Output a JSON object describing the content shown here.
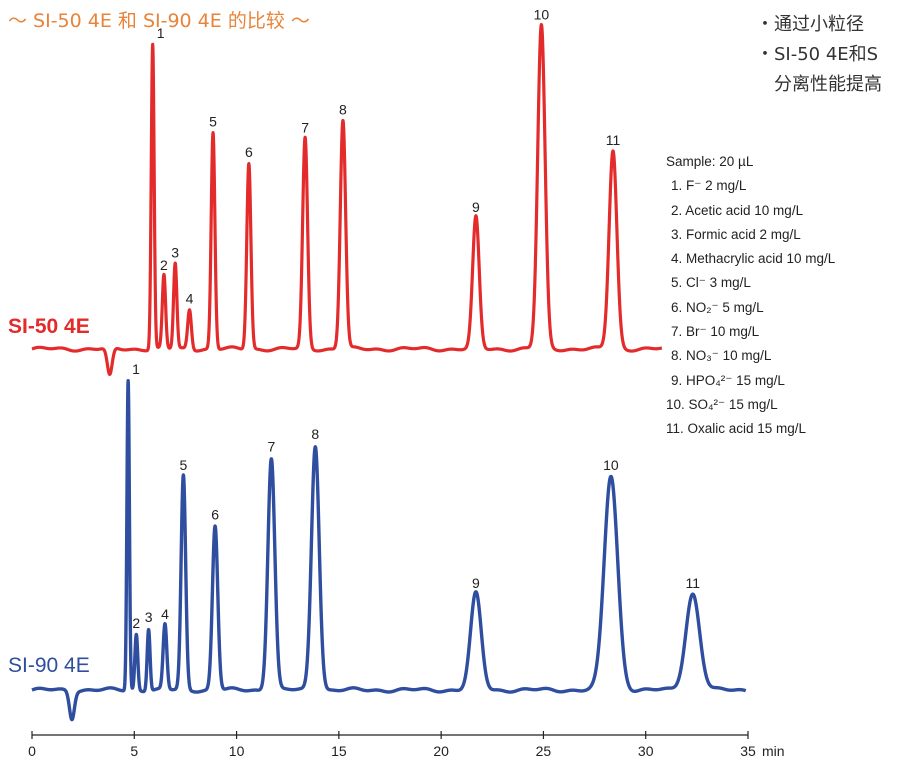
{
  "title": "～ SI-50 4E 和 SI-90 4E 的比较 ～",
  "bullets": [
    "・通过小粒径",
    "・SI-50 4E和S",
    "分离性能提高"
  ],
  "legend": {
    "header": "Sample: 20 µL",
    "items": [
      "1. F⁻ 2 mg/L",
      "2. Acetic acid 10 mg/L",
      "3. Formic acid 2 mg/L",
      "4. Methacrylic acid 10 mg/L",
      "5. Cl⁻ 3 mg/L",
      "6. NO₂⁻ 5 mg/L",
      "7. Br⁻ 10 mg/L",
      "8. NO₃⁻ 10 mg/L",
      "9. HPO₄²⁻ 15 mg/L",
      "10. SO₄²⁻ 15 mg/L",
      "11. Oxalic acid 15 mg/L"
    ]
  },
  "colors": {
    "si50": "#e32b2b",
    "si90": "#2f4ea0",
    "title": "#e8833a"
  },
  "chart_data": {
    "type": "line",
    "x_axis": {
      "label": "min",
      "ticks": [
        0,
        5,
        10,
        15,
        20,
        25,
        30,
        35
      ],
      "range": [
        0,
        35
      ]
    },
    "y_axis": {
      "label": "",
      "ticks": [],
      "scale": "relative"
    },
    "series": [
      {
        "name": "SI-50 4E",
        "dip": {
          "x": 3.8,
          "depth": 0.09
        },
        "peaks": [
          {
            "n": "1",
            "x": 5.9,
            "h": 1.0,
            "w": 0.07
          },
          {
            "n": "2",
            "x": 6.45,
            "h": 0.24,
            "w": 0.08
          },
          {
            "n": "3",
            "x": 7.0,
            "h": 0.28,
            "w": 0.08
          },
          {
            "n": "4",
            "x": 7.7,
            "h": 0.13,
            "w": 0.09
          },
          {
            "n": "5",
            "x": 8.85,
            "h": 0.71,
            "w": 0.09
          },
          {
            "n": "6",
            "x": 10.6,
            "h": 0.61,
            "w": 0.1
          },
          {
            "n": "7",
            "x": 13.35,
            "h": 0.69,
            "w": 0.12
          },
          {
            "n": "8",
            "x": 15.2,
            "h": 0.75,
            "w": 0.13
          },
          {
            "n": "9",
            "x": 21.7,
            "h": 0.43,
            "w": 0.16
          },
          {
            "n": "10",
            "x": 24.9,
            "h": 1.06,
            "w": 0.18
          },
          {
            "n": "11",
            "x": 28.4,
            "h": 0.65,
            "w": 0.19
          }
        ]
      },
      {
        "name": "SI-90 4E",
        "dip": {
          "x": 1.95,
          "depth": 0.09
        },
        "peaks": [
          {
            "n": "1",
            "x": 4.7,
            "h": 1.0,
            "w": 0.06
          },
          {
            "n": "2",
            "x": 5.1,
            "h": 0.18,
            "w": 0.07
          },
          {
            "n": "3",
            "x": 5.7,
            "h": 0.2,
            "w": 0.07
          },
          {
            "n": "4",
            "x": 6.5,
            "h": 0.21,
            "w": 0.09
          },
          {
            "n": "5",
            "x": 7.4,
            "h": 0.69,
            "w": 0.11
          },
          {
            "n": "6",
            "x": 8.95,
            "h": 0.53,
            "w": 0.13
          },
          {
            "n": "7",
            "x": 11.7,
            "h": 0.75,
            "w": 0.17
          },
          {
            "n": "8",
            "x": 13.85,
            "h": 0.79,
            "w": 0.19
          },
          {
            "n": "9",
            "x": 21.7,
            "h": 0.31,
            "w": 0.26
          },
          {
            "n": "10",
            "x": 28.3,
            "h": 0.69,
            "w": 0.33
          },
          {
            "n": "11",
            "x": 32.3,
            "h": 0.31,
            "w": 0.34
          }
        ]
      }
    ]
  }
}
